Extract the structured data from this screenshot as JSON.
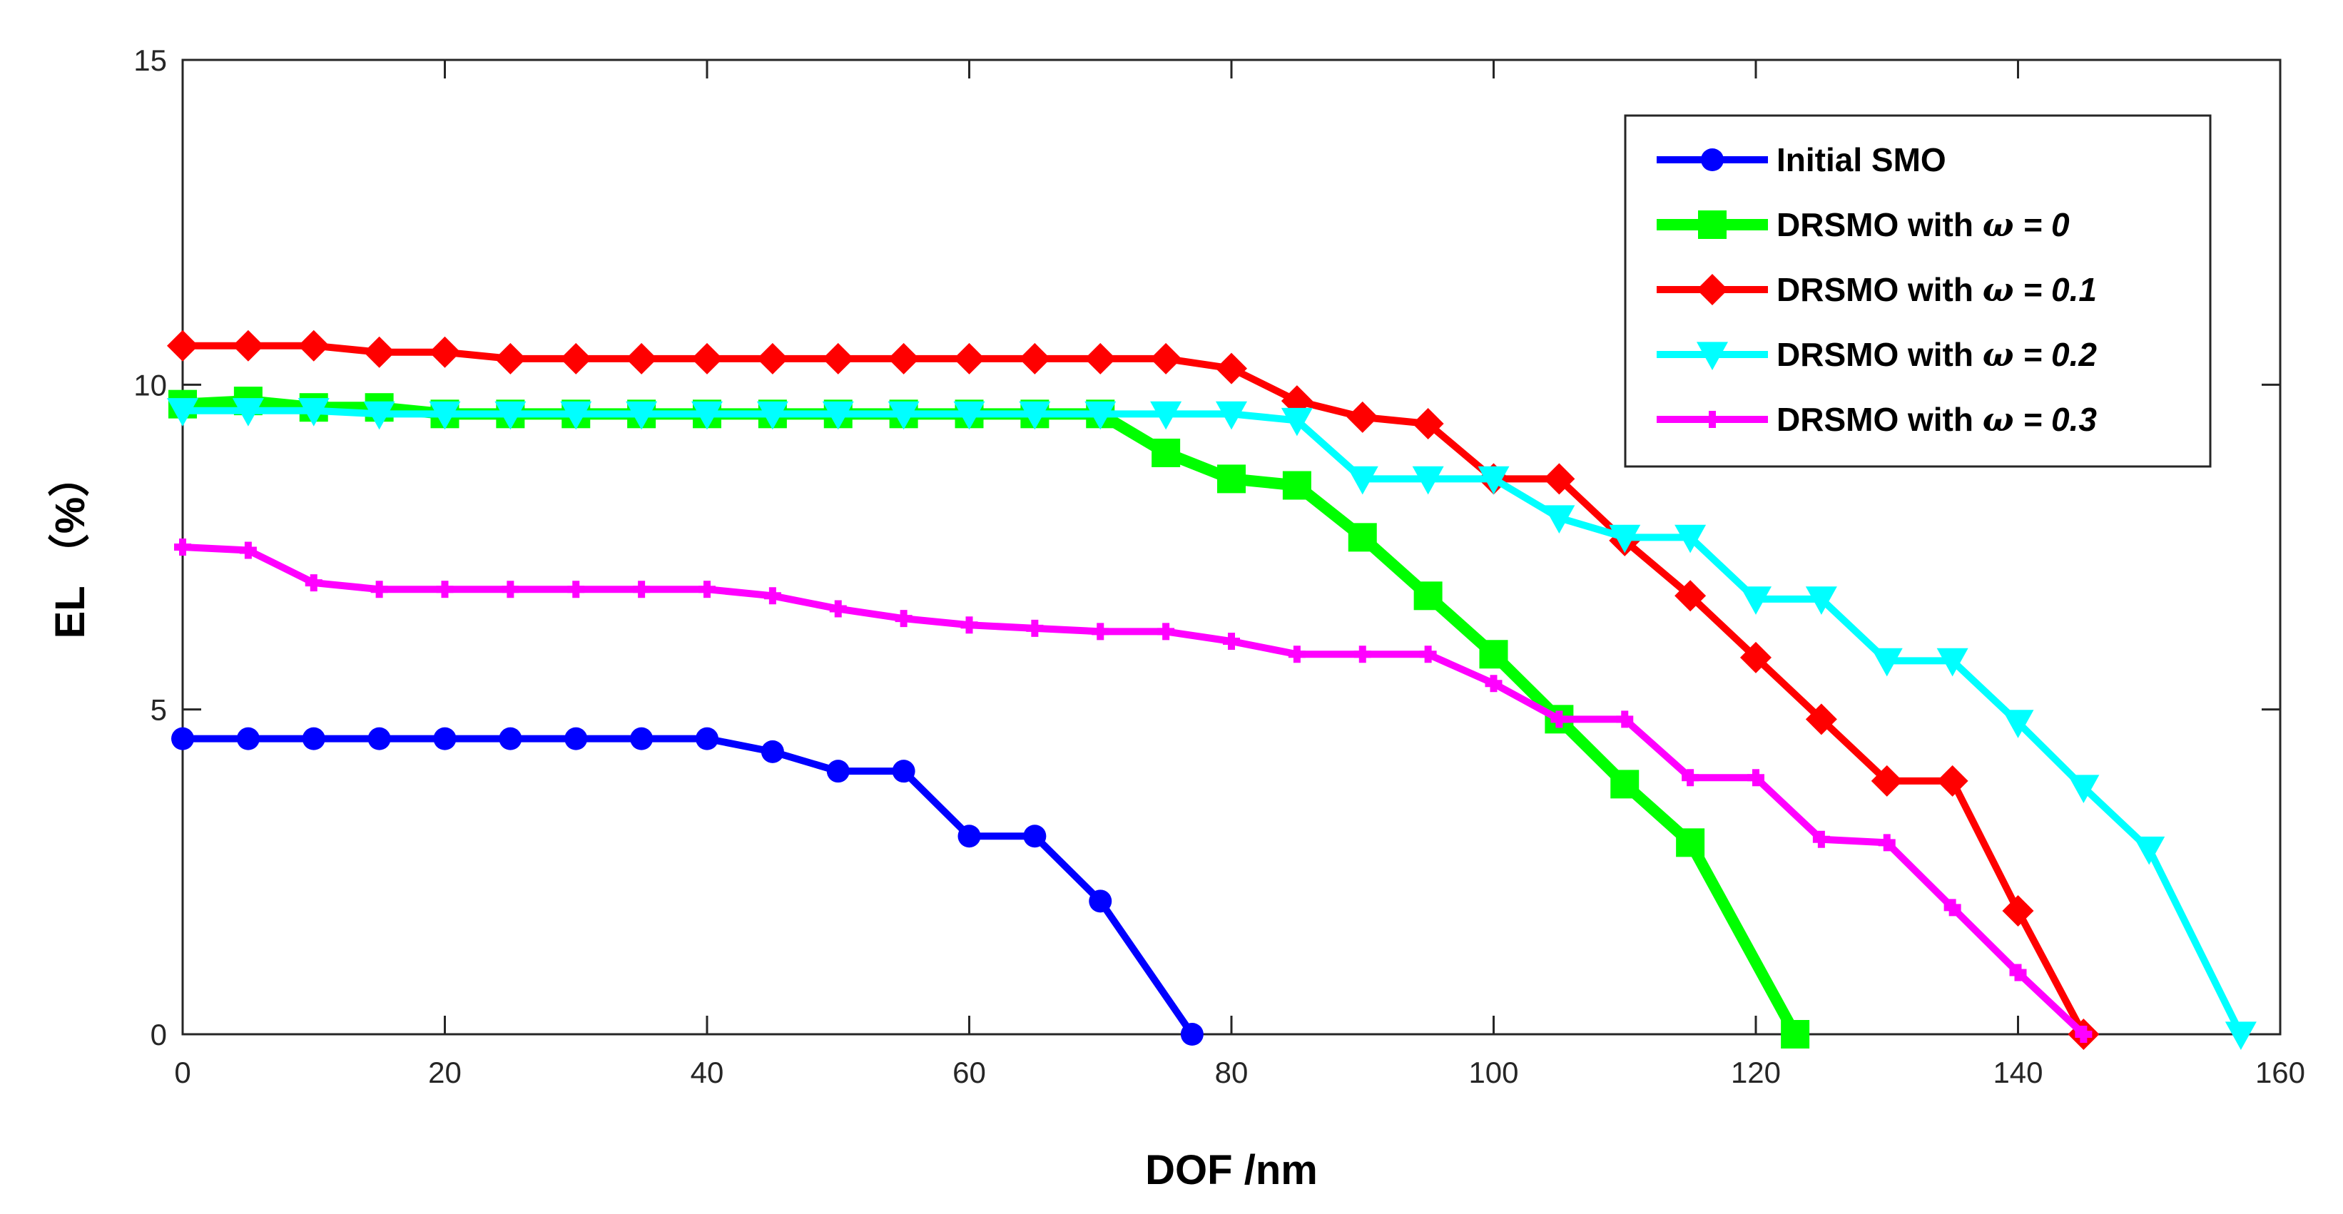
{
  "chart_data": {
    "type": "line",
    "xlabel": "DOF /nm",
    "ylabel": "EL （%）",
    "xlim": [
      0,
      160
    ],
    "ylim": [
      0,
      15
    ],
    "xticks": [
      0,
      20,
      40,
      60,
      80,
      100,
      120,
      140,
      160
    ],
    "yticks": [
      0,
      5,
      10,
      15
    ],
    "grid": false,
    "legend_position": "top-right",
    "series": [
      {
        "name": "Initial SMO",
        "legend_prefix": "Initial SMO",
        "legend_omega": "",
        "legend_value": "",
        "color": "#0000ff",
        "marker": "circle",
        "x": [
          0,
          5,
          10,
          15,
          20,
          25,
          30,
          35,
          40,
          45,
          50,
          55,
          60,
          65,
          70,
          77
        ],
        "y": [
          4.55,
          4.55,
          4.55,
          4.55,
          4.55,
          4.55,
          4.55,
          4.55,
          4.55,
          4.35,
          4.05,
          4.05,
          3.05,
          3.05,
          2.05,
          0
        ]
      },
      {
        "name": "DRSMO with ω = 0",
        "legend_prefix": "DRSMO with ",
        "legend_omega": "ω",
        "legend_value": " = 0",
        "color": "#00ff00",
        "marker": "square",
        "x": [
          0,
          5,
          10,
          15,
          20,
          25,
          30,
          35,
          40,
          45,
          50,
          55,
          60,
          65,
          70,
          75,
          80,
          85,
          90,
          95,
          100,
          105,
          110,
          115,
          123
        ],
        "y": [
          9.7,
          9.75,
          9.65,
          9.65,
          9.55,
          9.55,
          9.55,
          9.55,
          9.55,
          9.55,
          9.55,
          9.55,
          9.55,
          9.55,
          9.55,
          8.95,
          8.55,
          8.45,
          7.65,
          6.75,
          5.85,
          4.85,
          3.85,
          2.95,
          0
        ]
      },
      {
        "name": "DRSMO with ω = 0.1",
        "legend_prefix": "DRSMO with ",
        "legend_omega": "ω",
        "legend_value": " = 0.1",
        "color": "#ff0000",
        "marker": "diamond",
        "x": [
          0,
          5,
          10,
          15,
          20,
          25,
          30,
          35,
          40,
          45,
          50,
          55,
          60,
          65,
          70,
          75,
          80,
          85,
          90,
          95,
          100,
          105,
          110,
          115,
          120,
          125,
          130,
          135,
          140,
          145
        ],
        "y": [
          10.6,
          10.6,
          10.6,
          10.5,
          10.5,
          10.4,
          10.4,
          10.4,
          10.4,
          10.4,
          10.4,
          10.4,
          10.4,
          10.4,
          10.4,
          10.4,
          10.25,
          9.75,
          9.5,
          9.4,
          8.55,
          8.55,
          7.6,
          6.75,
          5.8,
          4.85,
          3.9,
          3.9,
          1.9,
          0
        ]
      },
      {
        "name": "DRSMO with ω = 0.2",
        "legend_prefix": "DRSMO with ",
        "legend_omega": "ω",
        "legend_value": " = 0.2",
        "color": "#00ffff",
        "marker": "triangle-down",
        "x": [
          0,
          5,
          10,
          15,
          20,
          25,
          30,
          35,
          40,
          45,
          50,
          55,
          60,
          65,
          70,
          75,
          80,
          85,
          90,
          95,
          100,
          105,
          110,
          115,
          120,
          125,
          130,
          135,
          140,
          145,
          150,
          157
        ],
        "y": [
          9.6,
          9.6,
          9.6,
          9.55,
          9.55,
          9.55,
          9.55,
          9.55,
          9.55,
          9.55,
          9.55,
          9.55,
          9.55,
          9.55,
          9.55,
          9.55,
          9.55,
          9.45,
          8.55,
          8.55,
          8.55,
          7.95,
          7.65,
          7.65,
          6.7,
          6.7,
          5.75,
          5.75,
          4.8,
          3.8,
          2.85,
          0
        ]
      },
      {
        "name": "DRSMO with ω = 0.3",
        "legend_prefix": "DRSMO with ",
        "legend_omega": "ω",
        "legend_value": " = 0.3",
        "color": "#ff00ff",
        "marker": "plus",
        "x": [
          0,
          5,
          10,
          15,
          20,
          25,
          30,
          35,
          40,
          45,
          50,
          55,
          60,
          65,
          70,
          75,
          80,
          85,
          90,
          95,
          100,
          105,
          110,
          115,
          120,
          125,
          130,
          135,
          140,
          145
        ],
        "y": [
          7.5,
          7.45,
          6.95,
          6.85,
          6.85,
          6.85,
          6.85,
          6.85,
          6.85,
          6.75,
          6.55,
          6.4,
          6.3,
          6.25,
          6.2,
          6.2,
          6.05,
          5.85,
          5.85,
          5.85,
          5.4,
          4.85,
          4.85,
          3.95,
          3.95,
          3.0,
          2.95,
          1.95,
          0.95,
          0
        ]
      }
    ]
  }
}
